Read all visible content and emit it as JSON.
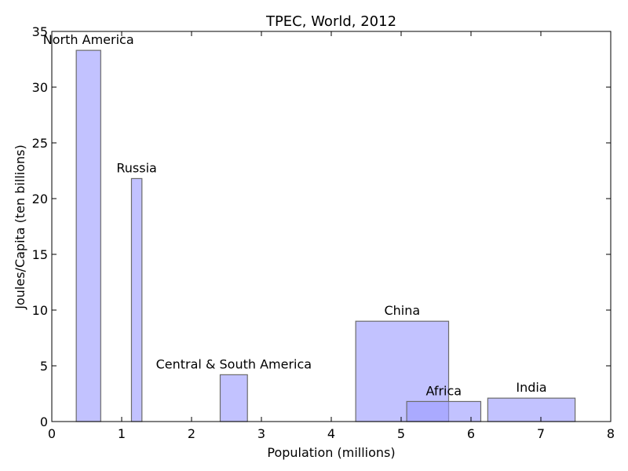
{
  "chart_data": {
    "type": "bar",
    "title": "TPEC, World, 2012",
    "xlabel": "Population (millions)",
    "ylabel": "Joules/Capita (ten billions)",
    "xlim": [
      0,
      8
    ],
    "ylim": [
      0,
      35
    ],
    "xticks": [
      "0",
      "1",
      "2",
      "3",
      "4",
      "5",
      "6",
      "7",
      "8"
    ],
    "yticks": [
      "0",
      "5",
      "10",
      "15",
      "20",
      "25",
      "30",
      "35"
    ],
    "bars": [
      {
        "label": "North America",
        "x_start": 0.35,
        "x_end": 0.7,
        "value": 33.3,
        "color": "#9999ff"
      },
      {
        "label": "Russia",
        "x_start": 1.14,
        "x_end": 1.29,
        "value": 21.8,
        "color": "#9999ff"
      },
      {
        "label": "Central & South America",
        "x_start": 2.41,
        "x_end": 2.8,
        "value": 4.2,
        "color": "#9999ff"
      },
      {
        "label": "China",
        "x_start": 4.35,
        "x_end": 5.68,
        "value": 9.0,
        "color": "#9999ff"
      },
      {
        "label": "Africa",
        "x_start": 5.08,
        "x_end": 6.14,
        "value": 1.8,
        "color": "#9999ff"
      },
      {
        "label": "India",
        "x_start": 6.24,
        "x_end": 7.49,
        "value": 2.1,
        "color": "#9999ff"
      }
    ],
    "grid": false
  }
}
